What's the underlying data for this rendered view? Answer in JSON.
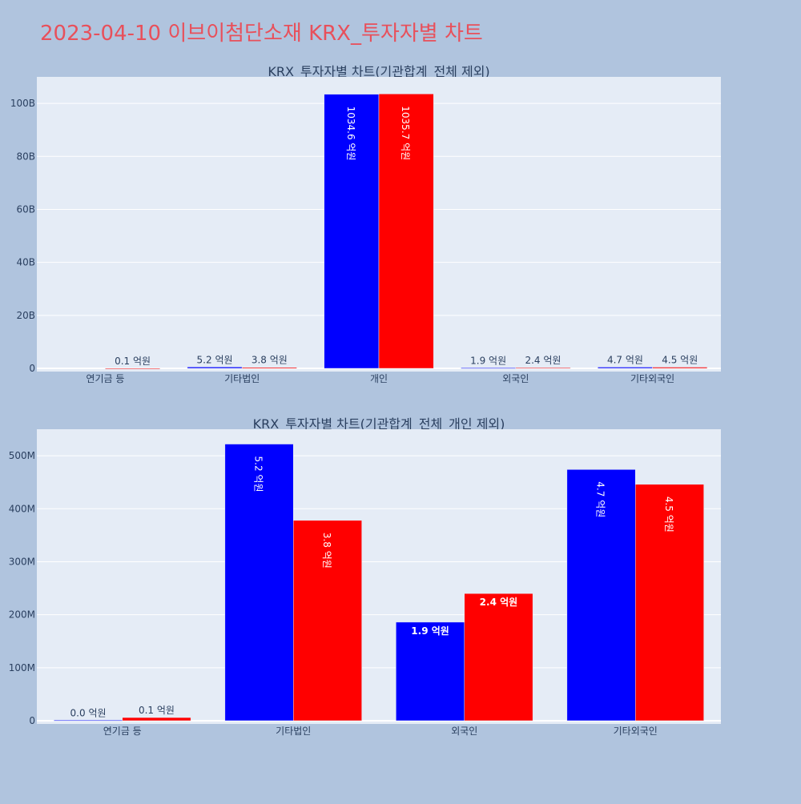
{
  "page": {
    "title": "2023-04-10 이브이첨단소재 KRX_투자자별 차트"
  },
  "colors": {
    "background": "#b0c4de",
    "plot_bg": "#e5ecf6",
    "title": "#e8505b",
    "axis_text": "#2a3f5f",
    "buy": "#0000ff",
    "sell": "#ff0000"
  },
  "chart_data": [
    {
      "type": "bar",
      "title": "KRX_투자자별 차트(기관합계_전체 제외)",
      "categories": [
        "연기금 등",
        "기타법인",
        "개인",
        "외국인",
        "기타외국인"
      ],
      "ylim": [
        0,
        110000000000
      ],
      "yticks": [
        0,
        20000000000,
        40000000000,
        60000000000,
        80000000000,
        100000000000
      ],
      "ytick_labels": [
        "0",
        "20B",
        "40B",
        "60B",
        "80B",
        "100B"
      ],
      "grid": true,
      "series": [
        {
          "color": "#0000ff",
          "values": [
            0,
            520000000,
            103460000000,
            190000000,
            470000000
          ],
          "labels": [
            "",
            "5.2 억원",
            "1034.6 억원",
            "1.9 억원",
            "4.7 억원"
          ]
        },
        {
          "color": "#ff0000",
          "values": [
            10000000,
            380000000,
            103570000000,
            240000000,
            450000000
          ],
          "labels": [
            "0.1 억원",
            "3.8 억원",
            "1035.7 억원",
            "2.4 억원",
            "4.5 억원"
          ]
        }
      ]
    },
    {
      "type": "bar",
      "title": "KRX_투자자별 차트(기관합계_전체_개인 제외)",
      "categories": [
        "연기금 등",
        "기타법인",
        "외국인",
        "기타외국인"
      ],
      "ylim": [
        0,
        550000000
      ],
      "yticks": [
        0,
        100000000,
        200000000,
        300000000,
        400000000,
        500000000
      ],
      "ytick_labels": [
        "0",
        "100M",
        "200M",
        "300M",
        "400M",
        "500M"
      ],
      "grid": true,
      "series": [
        {
          "color": "#0000ff",
          "values": [
            1000000,
            522000000,
            186000000,
            474000000
          ],
          "labels": [
            "0.0 억원",
            "5.2 억원",
            "1.9 억원",
            "4.7 억원"
          ]
        },
        {
          "color": "#ff0000",
          "values": [
            6000000,
            378000000,
            240000000,
            446000000
          ],
          "labels": [
            "0.1 억원",
            "3.8 억원",
            "2.4 억원",
            "4.5 억원"
          ]
        }
      ]
    }
  ]
}
